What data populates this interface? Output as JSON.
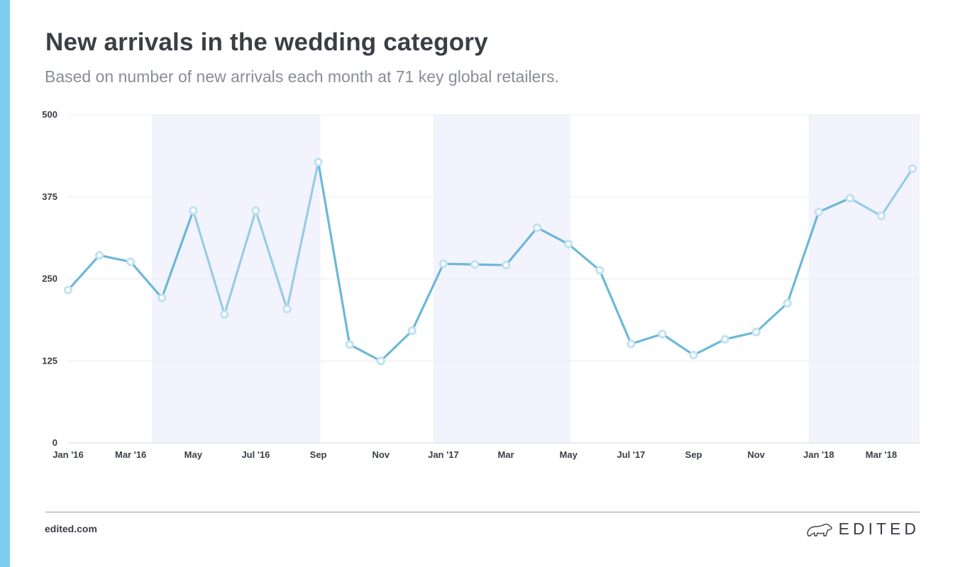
{
  "header": {
    "title": "New arrivals in the wedding category",
    "subtitle": "Based on number of new arrivals each month at 71 key global retailers."
  },
  "footer": {
    "site": "edited.com",
    "brand": "EDITED"
  },
  "colors": {
    "accent_bar": "#7fcdee",
    "line_dark": "#6cb8d8",
    "line_light": "#98cce6",
    "band": "#f3f3fd",
    "grid": "#ececf0",
    "text": "#3a3e45",
    "subtext": "#8a8d94"
  },
  "chart_data": {
    "type": "line",
    "title": "New arrivals in the wedding category",
    "subtitle": "Based on number of new arrivals each month at 71 key global retailers.",
    "xlabel": "",
    "ylabel": "",
    "ylim": [
      0,
      500
    ],
    "yticks": [
      0,
      125,
      250,
      375,
      500
    ],
    "grid": true,
    "legend": "none",
    "x": [
      "Jan '16",
      "Feb '16",
      "Mar '16",
      "Apr '16",
      "May '16",
      "Jun '16",
      "Jul '16",
      "Aug '16",
      "Sep '16",
      "Oct '16",
      "Nov '16",
      "Dec '16",
      "Jan '17",
      "Feb '17",
      "Mar '17",
      "Apr '17",
      "May '17",
      "Jun '17",
      "Jul '17",
      "Aug '17",
      "Sep '17",
      "Oct '17",
      "Nov '17",
      "Dec '17",
      "Jan '18",
      "Feb '18",
      "Mar '18",
      "Apr '18"
    ],
    "xtick_labels": [
      {
        "index": 0,
        "label": "Jan '16"
      },
      {
        "index": 2,
        "label": "Mar '16"
      },
      {
        "index": 4,
        "label": "May"
      },
      {
        "index": 6,
        "label": "Jul '16"
      },
      {
        "index": 8,
        "label": "Sep"
      },
      {
        "index": 10,
        "label": "Nov"
      },
      {
        "index": 12,
        "label": "Jan '17"
      },
      {
        "index": 14,
        "label": "Mar"
      },
      {
        "index": 16,
        "label": "May"
      },
      {
        "index": 18,
        "label": "Jul '17"
      },
      {
        "index": 20,
        "label": "Sep"
      },
      {
        "index": 22,
        "label": "Nov"
      },
      {
        "index": 24,
        "label": "Jan '18"
      },
      {
        "index": 26,
        "label": "Mar '18"
      }
    ],
    "series": [
      {
        "values": [
          233,
          286,
          276,
          221,
          354,
          196,
          354,
          204,
          428,
          150,
          125,
          171,
          273,
          272,
          271,
          328,
          303,
          263,
          151,
          166,
          134,
          158,
          169,
          213,
          352,
          373,
          346,
          418
        ]
      }
    ],
    "highlighted_ranges": [
      {
        "from": "Apr '16",
        "to": "Sep '16"
      },
      {
        "from": "Jan '17",
        "to": "May '17"
      },
      {
        "from": "Jan '18",
        "to": "Apr '18"
      }
    ],
    "light_segment_ranges": [
      {
        "from": "May '16",
        "to": "Sep '16"
      },
      {
        "from": "Feb '18",
        "to": "Apr '18"
      }
    ]
  }
}
